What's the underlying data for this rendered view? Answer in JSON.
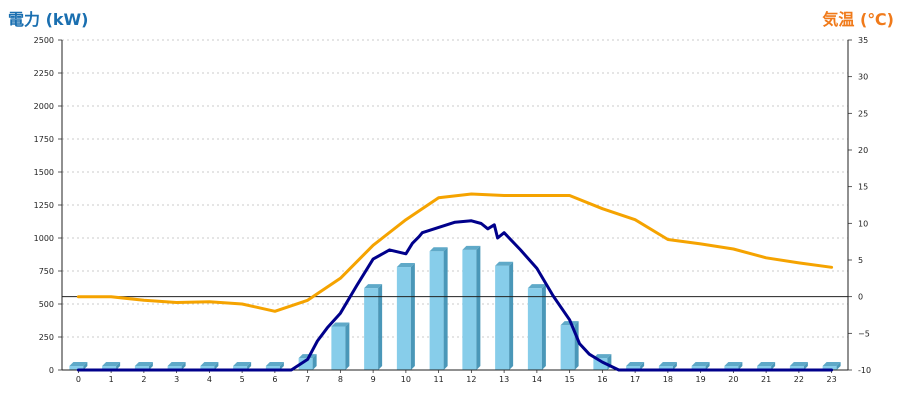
{
  "chart_data": {
    "type": "bar",
    "left_axis_title": "電力 (kW)",
    "right_axis_title": "気温 (℃)",
    "x_ticks": [
      "0",
      "1",
      "2",
      "3",
      "4",
      "5",
      "6",
      "7",
      "8",
      "9",
      "10",
      "11",
      "12",
      "13",
      "14",
      "15",
      "16",
      "17",
      "18",
      "19",
      "20",
      "21",
      "22",
      "23"
    ],
    "left_ticks": [
      "0",
      "250",
      "500",
      "750",
      "1000",
      "1250",
      "1500",
      "1750",
      "2000",
      "2250",
      "2500"
    ],
    "right_ticks": [
      "-10",
      "−5",
      "0",
      "5",
      "10",
      "15",
      "20",
      "25",
      "30",
      "35"
    ],
    "ylim_left": [
      0,
      2500
    ],
    "ylim_right": [
      -10,
      35
    ],
    "reference_line_temperature": 0,
    "colors": {
      "bar": "#87cdea",
      "bar_side": "#4a97b8",
      "bar_top": "#5fa9c8",
      "power_line": "#00008b",
      "temperature_line": "#f5a300",
      "left_title": "#1a6fb0",
      "right_title": "#f07a1a"
    },
    "series": [
      {
        "type": "bar",
        "axis": "left",
        "x": [
          0,
          1,
          2,
          3,
          4,
          5,
          6,
          7,
          8,
          9,
          10,
          11,
          12,
          13,
          14,
          15,
          16,
          17,
          18,
          19,
          20,
          21,
          22,
          23
        ],
        "values": [
          0,
          0,
          0,
          0,
          0,
          0,
          0,
          90,
          330,
          620,
          780,
          900,
          910,
          790,
          620,
          340,
          90,
          0,
          0,
          0,
          0,
          0,
          0,
          0
        ]
      },
      {
        "type": "line",
        "axis": "left",
        "x": [
          0,
          1,
          2,
          3,
          4,
          5,
          6,
          6.5,
          7,
          7.3,
          7.6,
          8,
          8.5,
          9,
          9.5,
          10,
          10.2,
          10.4,
          10.5,
          11,
          11.5,
          12,
          12.3,
          12.5,
          12.7,
          12.8,
          13,
          13.5,
          14,
          14.5,
          15,
          15.3,
          15.6,
          16,
          16.5,
          17,
          18,
          19,
          20,
          21,
          22,
          23
        ],
        "values": [
          0,
          0,
          0,
          0,
          0,
          0,
          0,
          0,
          80,
          220,
          320,
          430,
          640,
          840,
          910,
          880,
          960,
          1010,
          1040,
          1080,
          1120,
          1130,
          1110,
          1070,
          1100,
          1000,
          1040,
          910,
          770,
          560,
          380,
          200,
          120,
          60,
          0,
          0,
          0,
          0,
          0,
          0,
          0,
          0
        ]
      },
      {
        "type": "line",
        "axis": "right",
        "x": [
          0,
          1,
          2,
          3,
          4,
          5,
          6,
          7,
          8,
          9,
          10,
          11,
          12,
          13,
          14,
          15,
          16,
          17,
          18,
          19,
          20,
          21,
          22,
          23
        ],
        "values": [
          0,
          0,
          -0.5,
          -0.8,
          -0.7,
          -1,
          -2,
          -0.5,
          2.5,
          7,
          10.5,
          13.5,
          14,
          13.8,
          13.8,
          13.8,
          12,
          10.5,
          7.8,
          7.2,
          6.5,
          5.3,
          4.6,
          4
        ]
      }
    ]
  }
}
